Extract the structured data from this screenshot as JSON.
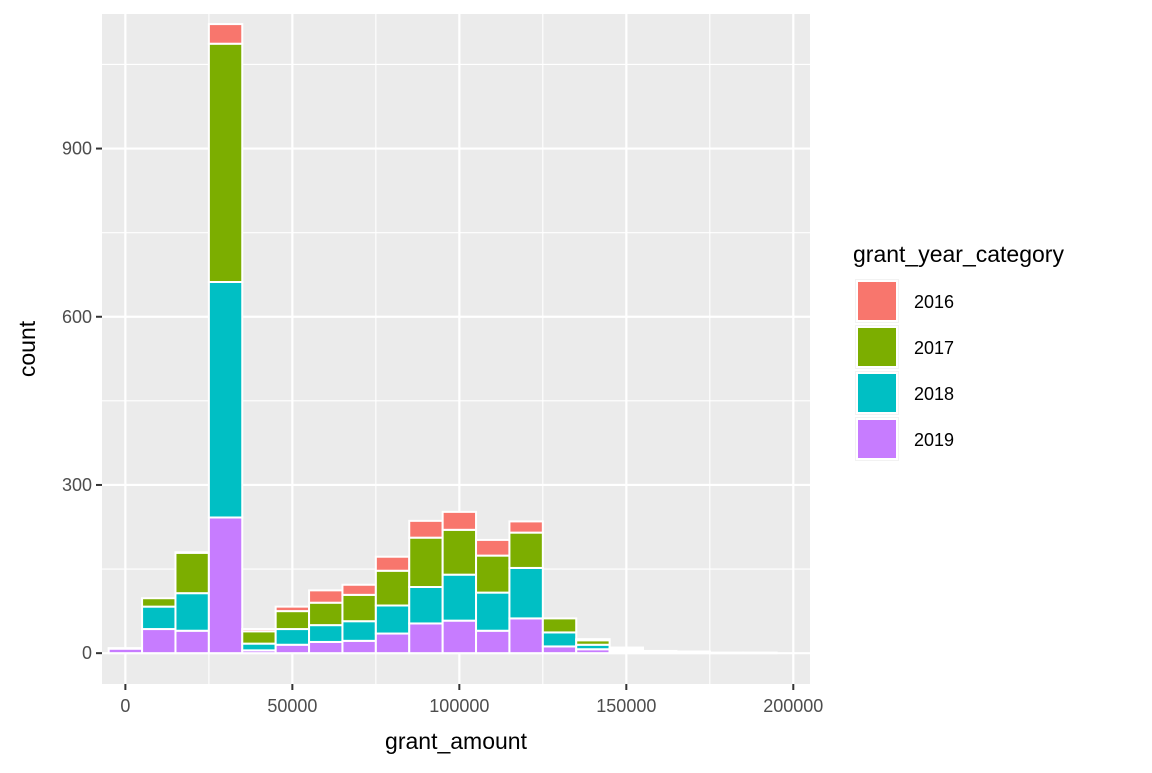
{
  "chart_data": {
    "type": "bar",
    "stacked": true,
    "histogram": true,
    "title": "",
    "xlabel": "grant_amount",
    "ylabel": "count",
    "xlim": [
      -7000,
      205000
    ],
    "ylim": [
      -55,
      1140
    ],
    "x_ticks": [
      0,
      50000,
      100000,
      150000,
      200000
    ],
    "x_tick_labels": [
      "0",
      "50000",
      "100000",
      "150000",
      "200000"
    ],
    "y_ticks": [
      0,
      300,
      600,
      900
    ],
    "y_tick_labels": [
      "0",
      "300",
      "600",
      "900"
    ],
    "bin_width": 10000,
    "bin_centers": [
      0,
      10000,
      20000,
      30000,
      40000,
      50000,
      60000,
      70000,
      80000,
      90000,
      100000,
      110000,
      120000,
      130000,
      140000,
      150000,
      160000,
      170000,
      180000,
      190000
    ],
    "grid": true,
    "legend": {
      "title": "grant_year_category",
      "position": "right",
      "entries": [
        "2016",
        "2017",
        "2018",
        "2019"
      ]
    },
    "series": [
      {
        "name": "2019",
        "color": "#C77CFF",
        "values": [
          8,
          43,
          40,
          242,
          5,
          15,
          20,
          22,
          35,
          53,
          58,
          40,
          62,
          12,
          7,
          3,
          2,
          1,
          1,
          1
        ]
      },
      {
        "name": "2018",
        "color": "#00BFC4",
        "values": [
          1,
          40,
          67,
          420,
          12,
          28,
          30,
          35,
          50,
          65,
          82,
          68,
          90,
          25,
          8,
          3,
          1,
          1,
          0,
          0
        ]
      },
      {
        "name": "2017",
        "color": "#7CAE00",
        "values": [
          0,
          15,
          72,
          425,
          22,
          32,
          40,
          47,
          62,
          88,
          80,
          66,
          63,
          25,
          8,
          3,
          1,
          1,
          0,
          0
        ]
      },
      {
        "name": "2016",
        "color": "#F8766D",
        "values": [
          0,
          0,
          1,
          35,
          4,
          8,
          22,
          18,
          25,
          30,
          32,
          28,
          20,
          0,
          2,
          1,
          0,
          0,
          0,
          0
        ]
      }
    ]
  }
}
